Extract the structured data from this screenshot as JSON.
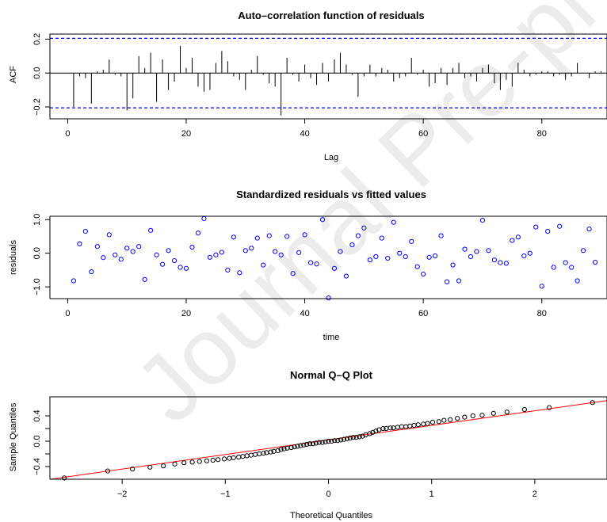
{
  "watermark": "Journal Pre-proof",
  "chart_data": [
    {
      "type": "bar",
      "title": "Auto–correlation function of residuals",
      "xlabel": "Lag",
      "ylabel": "ACF",
      "xlim": [
        -3,
        91
      ],
      "ylim": [
        -0.27,
        0.23
      ],
      "xticks": [
        "0",
        "20",
        "40",
        "60",
        "80"
      ],
      "yticks": [
        "−0.2",
        "0.0",
        "0.2"
      ],
      "xtick_values": [
        0,
        20,
        40,
        60,
        80
      ],
      "ytick_values": [
        -0.2,
        0,
        0.2
      ],
      "ci": 0.205,
      "lags": [
        1,
        2,
        3,
        4,
        5,
        6,
        7,
        8,
        9,
        10,
        11,
        12,
        13,
        14,
        15,
        16,
        17,
        18,
        19,
        20,
        21,
        22,
        23,
        24,
        25,
        26,
        27,
        28,
        29,
        30,
        31,
        32,
        33,
        34,
        35,
        36,
        37,
        38,
        39,
        40,
        41,
        42,
        43,
        44,
        45,
        46,
        47,
        48,
        49,
        50,
        51,
        52,
        53,
        54,
        55,
        56,
        57,
        58,
        59,
        60,
        61,
        62,
        63,
        64,
        65,
        66,
        67,
        68,
        69,
        70,
        71,
        72,
        73,
        74,
        75,
        76,
        77,
        78,
        79,
        80,
        81,
        82,
        83,
        84,
        85,
        86,
        87,
        88,
        89,
        90
      ],
      "values": [
        -0.2,
        -0.02,
        -0.03,
        -0.18,
        0.01,
        0.02,
        0.08,
        -0.01,
        -0.02,
        -0.22,
        -0.15,
        0.1,
        0.03,
        0.12,
        -0.17,
        0.08,
        -0.1,
        -0.05,
        0.16,
        0.03,
        0.09,
        -0.08,
        -0.11,
        -0.1,
        0.06,
        0.13,
        0.07,
        -0.02,
        -0.04,
        -0.1,
        0.02,
        0.1,
        -0.01,
        -0.06,
        -0.08,
        -0.25,
        0.09,
        -0.01,
        -0.05,
        0.05,
        -0.03,
        -0.07,
        0.06,
        -0.05,
        0.08,
        0.12,
        0.05,
        -0.01,
        -0.14,
        -0.02,
        0.05,
        -0.02,
        0.03,
        0.02,
        -0.05,
        -0.03,
        -0.02,
        0.09,
        -0.01,
        0.02,
        -0.08,
        -0.06,
        0.03,
        -0.07,
        0.03,
        0.06,
        -0.03,
        -0.02,
        -0.05,
        0.03,
        0.05,
        -0.06,
        -0.1,
        -0.04,
        -0.08,
        0.06,
        0.02,
        -0.02,
        -0.01,
        0.01,
        0.01,
        -0.02,
        -0.01,
        -0.04,
        -0.02,
        0.06,
        0.0,
        -0.03,
        0.01,
        0.01
      ]
    },
    {
      "type": "scatter",
      "title": "Standardized residuals vs fitted values",
      "xlabel": "time",
      "ylabel": "residuals",
      "xlim": [
        -3,
        91
      ],
      "ylim": [
        -1.35,
        1.1
      ],
      "xticks": [
        "0",
        "20",
        "40",
        "60",
        "80"
      ],
      "yticks": [
        "−1.0",
        "0.0",
        "1.0"
      ],
      "xtick_values": [
        0,
        20,
        40,
        60,
        80
      ],
      "ytick_values": [
        -1,
        0,
        1
      ],
      "color": "#0000ff",
      "x": [
        1,
        2,
        3,
        4,
        5,
        6,
        7,
        8,
        9,
        10,
        11,
        12,
        13,
        14,
        15,
        16,
        17,
        18,
        19,
        20,
        21,
        22,
        23,
        24,
        25,
        26,
        27,
        28,
        29,
        30,
        31,
        32,
        33,
        34,
        35,
        36,
        37,
        38,
        39,
        40,
        41,
        42,
        43,
        44,
        45,
        46,
        47,
        48,
        49,
        50,
        51,
        52,
        53,
        54,
        55,
        56,
        57,
        58,
        59,
        60,
        61,
        62,
        63,
        64,
        65,
        66,
        67,
        68,
        69,
        70,
        71,
        72,
        73,
        74,
        75,
        76,
        77,
        78,
        79,
        80,
        81,
        82,
        83,
        84,
        85,
        86,
        87,
        88,
        89
      ],
      "y": [
        -0.82,
        0.28,
        0.65,
        -0.55,
        0.2,
        -0.13,
        0.55,
        -0.05,
        -0.18,
        0.15,
        0.05,
        0.2,
        -0.78,
        0.68,
        -0.05,
        -0.33,
        0.08,
        -0.22,
        -0.42,
        -0.45,
        0.18,
        0.6,
        1.03,
        -0.12,
        -0.05,
        0.03,
        -0.5,
        0.48,
        -0.58,
        0.08,
        0.15,
        0.45,
        -0.35,
        0.52,
        0.05,
        -0.05,
        0.5,
        -0.6,
        0.02,
        0.55,
        -0.28,
        -0.32,
        1.0,
        -1.33,
        -0.45,
        0.05,
        -0.68,
        0.25,
        0.52,
        0.75,
        -0.2,
        -0.1,
        0.45,
        -0.15,
        0.92,
        0.0,
        -0.1,
        0.35,
        -0.4,
        -0.62,
        -0.12,
        -0.08,
        0.52,
        -0.85,
        -0.35,
        -0.82,
        0.12,
        -0.1,
        0.05,
        0.98,
        0.08,
        -0.2,
        -0.28,
        -0.3,
        0.38,
        0.48,
        -0.08,
        0.0,
        0.78,
        -0.98,
        0.65,
        -0.42,
        0.8,
        -0.28,
        -0.42,
        -0.82,
        0.08,
        0.72,
        -0.27
      ]
    },
    {
      "type": "scatter",
      "title": "Normal Q–Q Plot",
      "xlabel": "Theoretical Quantiles",
      "ylabel": "Sample Quantiles",
      "xlim": [
        -2.7,
        2.7
      ],
      "ylim": [
        -0.6,
        0.7
      ],
      "xticks": [
        "−2",
        "−1",
        "0",
        "1",
        "2"
      ],
      "yticks": [
        "−0.4",
        "0.0",
        "0.4"
      ],
      "xtick_values": [
        -2,
        -1,
        0,
        1,
        2
      ],
      "ytick_values": [
        -0.4,
        0.0,
        0.4
      ],
      "ytick_minor": [
        -0.2,
        0.2
      ],
      "reference_line": {
        "intercept": 0.02,
        "slope": 0.23,
        "color": "#ff0000"
      },
      "theoretical": [
        -2.56,
        -2.14,
        -1.9,
        -1.73,
        -1.6,
        -1.49,
        -1.4,
        -1.32,
        -1.25,
        -1.18,
        -1.12,
        -1.07,
        -1.01,
        -0.96,
        -0.92,
        -0.87,
        -0.83,
        -0.79,
        -0.75,
        -0.71,
        -0.67,
        -0.63,
        -0.6,
        -0.56,
        -0.53,
        -0.49,
        -0.46,
        -0.43,
        -0.4,
        -0.36,
        -0.33,
        -0.3,
        -0.27,
        -0.24,
        -0.21,
        -0.18,
        -0.15,
        -0.12,
        -0.09,
        -0.06,
        -0.03,
        0.0,
        0.03,
        0.06,
        0.09,
        0.12,
        0.15,
        0.18,
        0.21,
        0.24,
        0.27,
        0.3,
        0.33,
        0.36,
        0.4,
        0.43,
        0.46,
        0.49,
        0.53,
        0.56,
        0.6,
        0.63,
        0.67,
        0.71,
        0.75,
        0.79,
        0.83,
        0.87,
        0.92,
        0.96,
        1.01,
        1.07,
        1.12,
        1.18,
        1.25,
        1.32,
        1.4,
        1.49,
        1.6,
        1.73,
        1.9,
        2.14,
        2.56
      ],
      "sample": [
        -0.58,
        -0.47,
        -0.44,
        -0.41,
        -0.39,
        -0.36,
        -0.34,
        -0.33,
        -0.32,
        -0.31,
        -0.3,
        -0.29,
        -0.28,
        -0.27,
        -0.26,
        -0.25,
        -0.24,
        -0.23,
        -0.22,
        -0.21,
        -0.2,
        -0.19,
        -0.18,
        -0.17,
        -0.16,
        -0.15,
        -0.13,
        -0.12,
        -0.11,
        -0.1,
        -0.09,
        -0.08,
        -0.07,
        -0.06,
        -0.05,
        -0.04,
        -0.04,
        -0.03,
        -0.02,
        -0.02,
        -0.01,
        0.0,
        0.0,
        0.01,
        0.01,
        0.02,
        0.03,
        0.04,
        0.05,
        0.06,
        0.06,
        0.07,
        0.08,
        0.1,
        0.12,
        0.14,
        0.16,
        0.18,
        0.2,
        0.2,
        0.21,
        0.21,
        0.22,
        0.23,
        0.23,
        0.24,
        0.25,
        0.26,
        0.27,
        0.28,
        0.3,
        0.31,
        0.33,
        0.34,
        0.36,
        0.38,
        0.4,
        0.41,
        0.44,
        0.46,
        0.5,
        0.53,
        0.61
      ]
    }
  ]
}
